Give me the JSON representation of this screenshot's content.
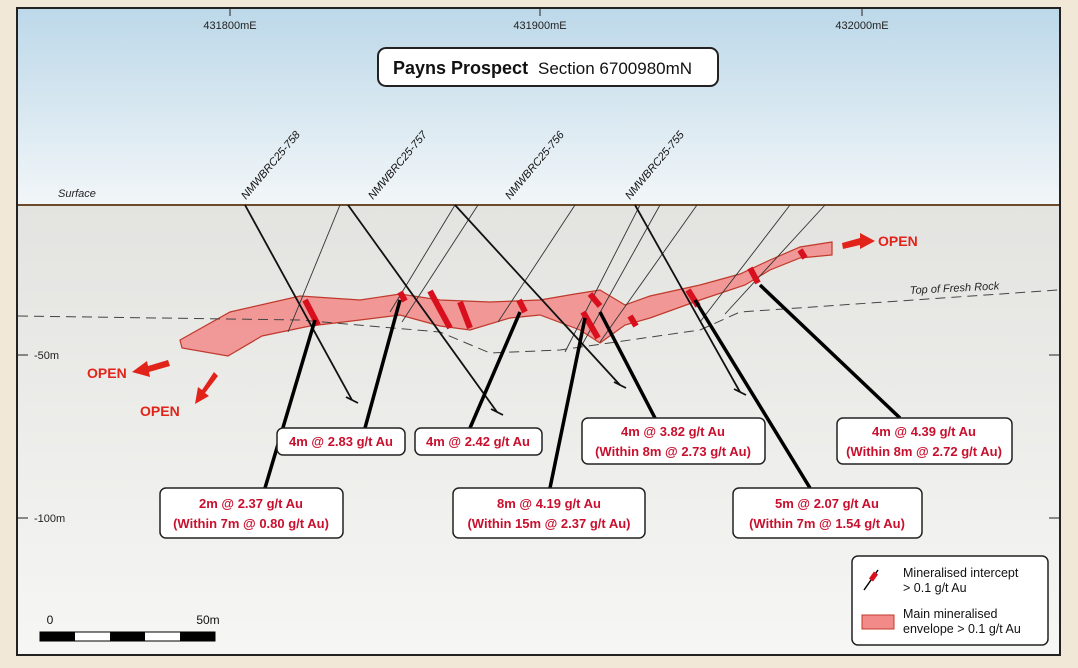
{
  "header": {
    "title": "Payns Prospect",
    "subtitle": "Section 6700980mN"
  },
  "eastings": [
    "431800mE",
    "431900mE",
    "432000mE"
  ],
  "depths": [
    "-50m",
    "-100m"
  ],
  "surface_label": "Surface",
  "fresh_rock_label": "Top of Fresh Rock",
  "holes": [
    "NMWBRC25-758",
    "NMWBRC25-757",
    "NMWBRC25-756",
    "NMWBRC25-755"
  ],
  "open_labels": [
    "OPEN",
    "OPEN",
    "OPEN"
  ],
  "intercepts": [
    {
      "lines": [
        "4m @ 2.83 g/t Au"
      ]
    },
    {
      "lines": [
        "4m @ 2.42 g/t Au"
      ]
    },
    {
      "lines": [
        "4m @ 3.82 g/t Au",
        "(Within 8m @ 2.73 g/t Au)"
      ]
    },
    {
      "lines": [
        "4m @ 4.39 g/t Au",
        "(Within 8m @ 2.72 g/t Au)"
      ]
    },
    {
      "lines": [
        "2m @ 2.37 g/t Au",
        "(Within 7m @ 0.80 g/t Au)"
      ]
    },
    {
      "lines": [
        "8m @ 4.19 g/t Au",
        "(Within 15m @ 2.37 g/t Au)"
      ]
    },
    {
      "lines": [
        "5m @ 2.07 g/t Au",
        "(Within 7m @ 1.54 g/t Au)"
      ]
    }
  ],
  "legend": [
    {
      "lines": [
        "Mineralised intercept",
        "> 0.1 g/t Au"
      ]
    },
    {
      "lines": [
        "Main mineralised",
        "envelope > 0.1 g/t Au"
      ]
    }
  ],
  "scale": {
    "start": "0",
    "end": "50m"
  }
}
